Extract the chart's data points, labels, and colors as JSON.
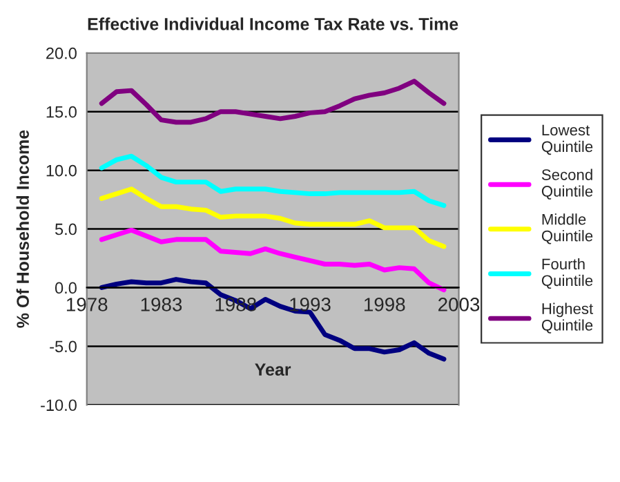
{
  "chart_data": {
    "type": "line",
    "title": "Effective Individual Income Tax Rate vs. Time",
    "xlabel": "Year",
    "ylabel": "% Of Household Income",
    "x": [
      1979,
      1980,
      1981,
      1982,
      1983,
      1984,
      1985,
      1986,
      1987,
      1988,
      1989,
      1990,
      1991,
      1992,
      1993,
      1994,
      1995,
      1996,
      1997,
      1998,
      1999,
      2000,
      2001,
      2002
    ],
    "series": [
      {
        "name": "Lowest Quintile",
        "color": "#000080",
        "values": [
          0.0,
          0.3,
          0.5,
          0.4,
          0.4,
          0.7,
          0.5,
          0.4,
          -0.6,
          -1.1,
          -1.8,
          -1.0,
          -1.6,
          -2.0,
          -2.1,
          -4.0,
          -4.5,
          -5.2,
          -5.2,
          -5.5,
          -5.3,
          -4.7,
          -5.6,
          -6.1
        ]
      },
      {
        "name": "Second Quintile",
        "color": "#ff00ff",
        "values": [
          4.1,
          4.5,
          4.9,
          4.4,
          3.9,
          4.1,
          4.1,
          4.1,
          3.1,
          3.0,
          2.9,
          3.3,
          2.9,
          2.6,
          2.3,
          2.0,
          2.0,
          1.9,
          2.0,
          1.5,
          1.7,
          1.6,
          0.4,
          -0.2
        ]
      },
      {
        "name": "Middle Quintile",
        "color": "#ffff00",
        "values": [
          7.6,
          8.0,
          8.4,
          7.6,
          6.9,
          6.9,
          6.7,
          6.6,
          6.0,
          6.1,
          6.1,
          6.1,
          5.9,
          5.5,
          5.4,
          5.4,
          5.4,
          5.4,
          5.7,
          5.1,
          5.1,
          5.1,
          4.0,
          3.5
        ]
      },
      {
        "name": "Fourth Quintile",
        "color": "#00ffff",
        "values": [
          10.2,
          10.9,
          11.2,
          10.4,
          9.4,
          9.0,
          9.0,
          9.0,
          8.2,
          8.4,
          8.4,
          8.4,
          8.2,
          8.1,
          8.0,
          8.0,
          8.1,
          8.1,
          8.1,
          8.1,
          8.1,
          8.2,
          7.4,
          7.0
        ]
      },
      {
        "name": "Highest Quintile",
        "color": "#800080",
        "values": [
          15.7,
          16.7,
          16.8,
          15.6,
          14.3,
          14.1,
          14.1,
          14.4,
          15.0,
          15.0,
          14.8,
          14.6,
          14.4,
          14.6,
          14.9,
          15.0,
          15.5,
          16.1,
          16.4,
          16.6,
          17.0,
          17.6,
          16.6,
          15.7
        ]
      }
    ],
    "xlim": [
      1978,
      2003
    ],
    "xticks": [
      1978,
      1983,
      1988,
      1993,
      1998,
      2003
    ],
    "ylim": [
      -10,
      20
    ],
    "yticks": [
      {
        "value": -10,
        "label": "-10.0"
      },
      {
        "value": -5,
        "label": "-5.0"
      },
      {
        "value": 0,
        "label": "0.0"
      },
      {
        "value": 5,
        "label": "5.0"
      },
      {
        "value": 10,
        "label": "10.0"
      },
      {
        "value": 15,
        "label": "15.0"
      },
      {
        "value": 20,
        "label": "20.0"
      }
    ],
    "grid": "y",
    "legend": "right",
    "marker": "none",
    "line_style": "solid"
  }
}
